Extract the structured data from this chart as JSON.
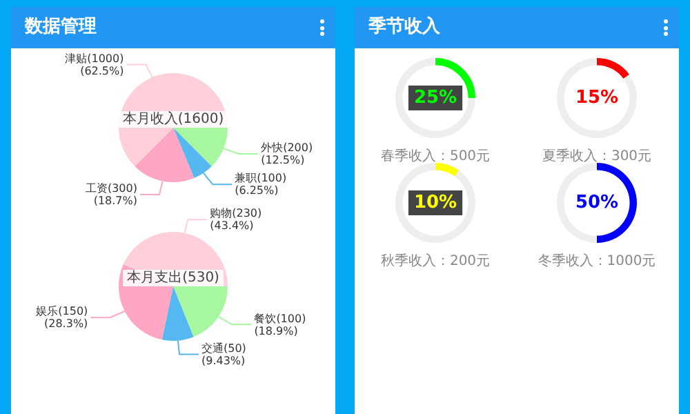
{
  "chart_data": [
    {
      "type": "other",
      "title": "数据管理"
    },
    {
      "type": "pie",
      "title": "本月收入(1600)",
      "categories": [
        "外快(200)",
        "兼职(100)",
        "工资(300)",
        "津贴(1000)"
      ],
      "values": [
        12.5,
        6.25,
        18.7,
        62.5
      ],
      "colors": [
        "#a6f7a0",
        "#55b8f0",
        "#ffa6c4",
        "#ffd0da"
      ],
      "value_labels": [
        "(12.5%)",
        "(6.25%)",
        "(18.7%)",
        "(62.5%)"
      ]
    },
    {
      "type": "pie",
      "title": "本月支出(530)",
      "categories": [
        "餐饮(100)",
        "交通(50)",
        "娱乐(150)",
        "购物(230)"
      ],
      "values": [
        18.9,
        9.43,
        28.3,
        43.4
      ],
      "colors": [
        "#a6f7a0",
        "#55b8f0",
        "#ffa6c4",
        "#ffd0da"
      ],
      "value_labels": [
        "(18.9%)",
        "(9.43%)",
        "(28.3%)",
        "(43.4%)"
      ]
    },
    {
      "type": "other",
      "title": "季节收入"
    },
    {
      "type": "donut",
      "categories": [
        null,
        null
      ],
      "values": [
        25,
        75
      ],
      "colors": [
        "#00ff00",
        "#eeeeee"
      ],
      "value_labels": [
        "25%",
        null
      ],
      "annotations": [
        "春季收入：500元"
      ]
    },
    {
      "type": "donut",
      "categories": [
        null,
        null
      ],
      "values": [
        15,
        85
      ],
      "colors": [
        "#ff0000",
        "#eeeeee"
      ],
      "value_labels": [
        "15%",
        null
      ],
      "annotations": [
        "夏季收入：300元"
      ]
    },
    {
      "type": "donut",
      "categories": [
        null,
        null
      ],
      "values": [
        10,
        90
      ],
      "colors": [
        "#ffff00",
        "#eeeeee"
      ],
      "value_labels": [
        "10%",
        null
      ],
      "annotations": [
        "秋季收入：200元"
      ]
    },
    {
      "type": "donut",
      "categories": [
        null,
        null
      ],
      "values": [
        50,
        50
      ],
      "colors": [
        "#0000ff",
        "#eeeeee"
      ],
      "value_labels": [
        "50%",
        null
      ],
      "annotations": [
        "冬季收入：1000元"
      ]
    }
  ]
}
